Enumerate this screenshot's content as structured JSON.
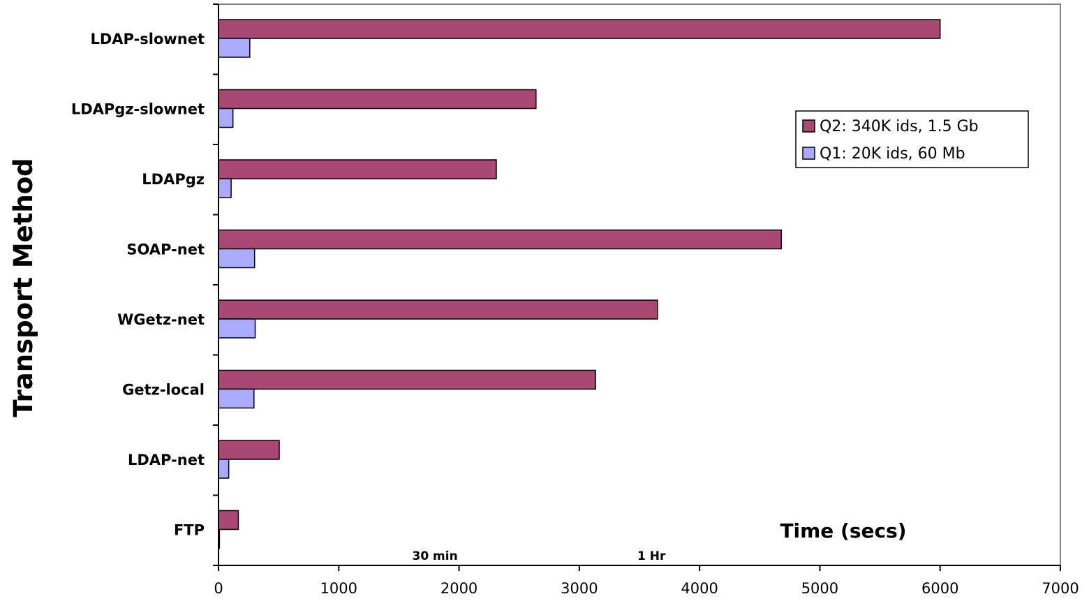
{
  "chart_data": {
    "type": "bar",
    "orientation": "horizontal",
    "categories": [
      "LDAP-slownet",
      "LDAPgz-slownet",
      "LDAPgz",
      "SOAP-net",
      "WGetz-net",
      "Getz-local",
      "LDAP-net",
      "FTP"
    ],
    "series": [
      {
        "name": "Q2: 340K ids, 1.5 Gb",
        "color": "#a84873",
        "values": [
          6000,
          2640,
          2310,
          4680,
          3650,
          3135,
          505,
          165
        ]
      },
      {
        "name": "Q1: 20K ids, 60 Mb",
        "color": "#aaaaff",
        "values": [
          260,
          120,
          105,
          300,
          305,
          295,
          85,
          8
        ]
      }
    ],
    "xlabel": "Time (secs)",
    "ylabel": "Transport Method",
    "xlim": [
      0,
      7000
    ],
    "xticks": [
      0,
      1000,
      2000,
      3000,
      4000,
      5000,
      6000,
      7000
    ],
    "annotations": [
      {
        "text": "30 min",
        "x": 1800
      },
      {
        "text": "1 Hr",
        "x": 3600
      }
    ],
    "legend_position": "right",
    "grid": false
  }
}
